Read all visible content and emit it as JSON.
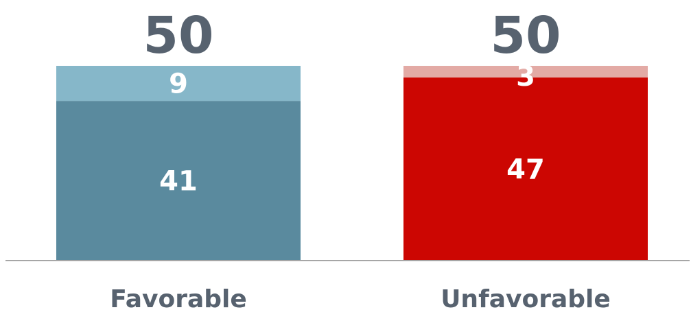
{
  "chart_data": {
    "type": "bar",
    "stacked": true,
    "categories": [
      "Favorable",
      "Unfavorable"
    ],
    "totals": [
      "50",
      "50"
    ],
    "ylim": [
      0,
      50
    ],
    "grid": false,
    "legend": "none",
    "bars": [
      {
        "category": "Favorable",
        "segments": [
          {
            "value": 41,
            "label": "41",
            "color": "#5A8A9E"
          },
          {
            "value": 9,
            "label": "9",
            "color": "#86B7C9"
          }
        ]
      },
      {
        "category": "Unfavorable",
        "segments": [
          {
            "value": 47,
            "label": "47",
            "color": "#CC0602"
          },
          {
            "value": 3,
            "label": "3",
            "color": "#E3AAA5"
          }
        ]
      }
    ],
    "colors": {
      "text": "#57626F",
      "axis": "#A6A6A6"
    }
  }
}
